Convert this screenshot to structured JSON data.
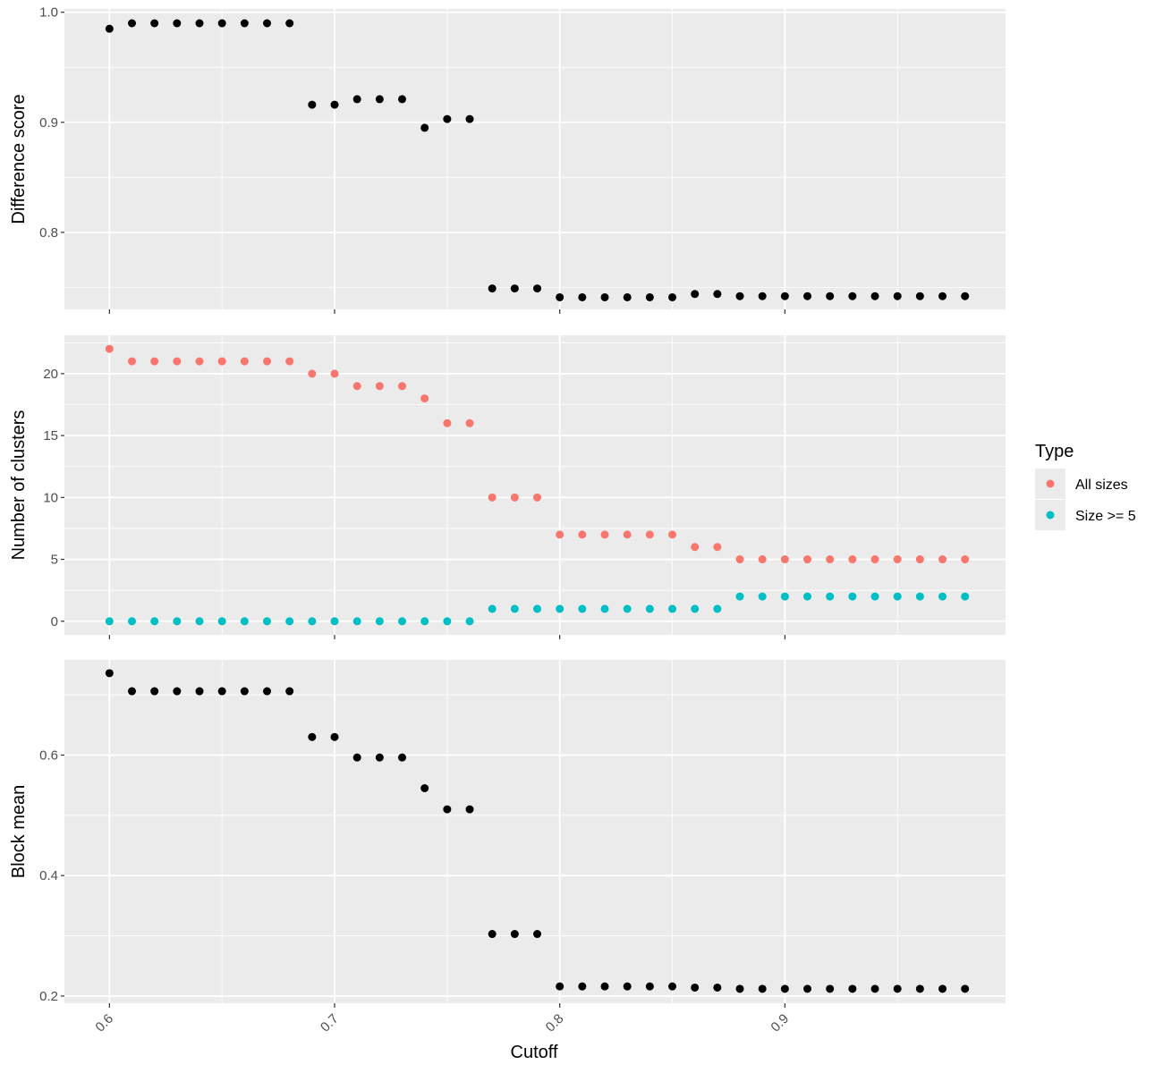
{
  "chart_data": {
    "type": "scatter",
    "x_axis": {
      "label": "Cutoff",
      "range": [
        0.58,
        0.998
      ],
      "ticks": [
        0.6,
        0.7,
        0.8,
        0.9
      ],
      "tick_labels": [
        "0.6",
        "0.7",
        "0.8",
        "0.9"
      ]
    },
    "x": [
      0.6,
      0.61,
      0.62,
      0.63,
      0.64,
      0.65,
      0.66,
      0.67,
      0.68,
      0.69,
      0.7,
      0.71,
      0.72,
      0.73,
      0.74,
      0.75,
      0.76,
      0.77,
      0.78,
      0.79,
      0.8,
      0.81,
      0.82,
      0.83,
      0.84,
      0.85,
      0.86,
      0.87,
      0.88,
      0.89,
      0.9,
      0.91,
      0.92,
      0.93,
      0.94,
      0.95,
      0.96,
      0.97,
      0.98
    ],
    "panels": [
      {
        "ylabel": "Difference score",
        "ylim": [
          0.73,
          1.003
        ],
        "yticks": [
          0.8,
          0.9,
          1.0
        ],
        "ytick_labels": [
          "0.8",
          "0.9",
          "1.0"
        ],
        "series": [
          {
            "color": "#000000",
            "values": [
              0.985,
              0.99,
              0.99,
              0.99,
              0.99,
              0.99,
              0.99,
              0.99,
              0.99,
              0.916,
              0.916,
              0.921,
              0.921,
              0.921,
              0.895,
              0.903,
              0.903,
              0.749,
              0.749,
              0.749,
              0.741,
              0.741,
              0.741,
              0.741,
              0.741,
              0.741,
              0.744,
              0.744,
              0.742,
              0.742,
              0.742,
              0.742,
              0.742,
              0.742,
              0.742,
              0.742,
              0.742,
              0.742,
              0.742
            ]
          }
        ]
      },
      {
        "ylabel": "Number of clusters",
        "ylim": [
          -1.1,
          23.1
        ],
        "yticks": [
          0,
          5,
          10,
          15,
          20
        ],
        "ytick_labels": [
          "0",
          "5",
          "10",
          "15",
          "20"
        ],
        "series": [
          {
            "name": "All sizes",
            "color": "#F8766D",
            "values": [
              22,
              21,
              21,
              21,
              21,
              21,
              21,
              21,
              21,
              20,
              20,
              19,
              19,
              19,
              18,
              16,
              16,
              10,
              10,
              10,
              7,
              7,
              7,
              7,
              7,
              7,
              6,
              6,
              5,
              5,
              5,
              5,
              5,
              5,
              5,
              5,
              5,
              5,
              5
            ]
          },
          {
            "name": "Size >= 5",
            "color": "#00BFC4",
            "values": [
              0,
              0,
              0,
              0,
              0,
              0,
              0,
              0,
              0,
              0,
              0,
              0,
              0,
              0,
              0,
              0,
              0,
              1,
              1,
              1,
              1,
              1,
              1,
              1,
              1,
              1,
              1,
              1,
              2,
              2,
              2,
              2,
              2,
              2,
              2,
              2,
              2,
              2,
              2
            ]
          }
        ]
      },
      {
        "ylabel": "Block mean",
        "ylim": [
          0.188,
          0.758
        ],
        "yticks": [
          0.2,
          0.4,
          0.6
        ],
        "ytick_labels": [
          "0.2",
          "0.4",
          "0.6"
        ],
        "series": [
          {
            "color": "#000000",
            "values": [
              0.736,
              0.706,
              0.706,
              0.706,
              0.706,
              0.706,
              0.706,
              0.706,
              0.706,
              0.63,
              0.63,
              0.596,
              0.596,
              0.596,
              0.545,
              0.51,
              0.51,
              0.303,
              0.303,
              0.303,
              0.216,
              0.216,
              0.216,
              0.216,
              0.216,
              0.216,
              0.214,
              0.214,
              0.212,
              0.212,
              0.212,
              0.212,
              0.212,
              0.212,
              0.212,
              0.212,
              0.212,
              0.212,
              0.212
            ]
          }
        ]
      }
    ],
    "legend": {
      "title": "Type",
      "position": "right",
      "entries": [
        {
          "label": "All sizes",
          "color": "#F8766D"
        },
        {
          "label": "Size >= 5",
          "color": "#00BFC4"
        }
      ]
    },
    "grid": true
  }
}
